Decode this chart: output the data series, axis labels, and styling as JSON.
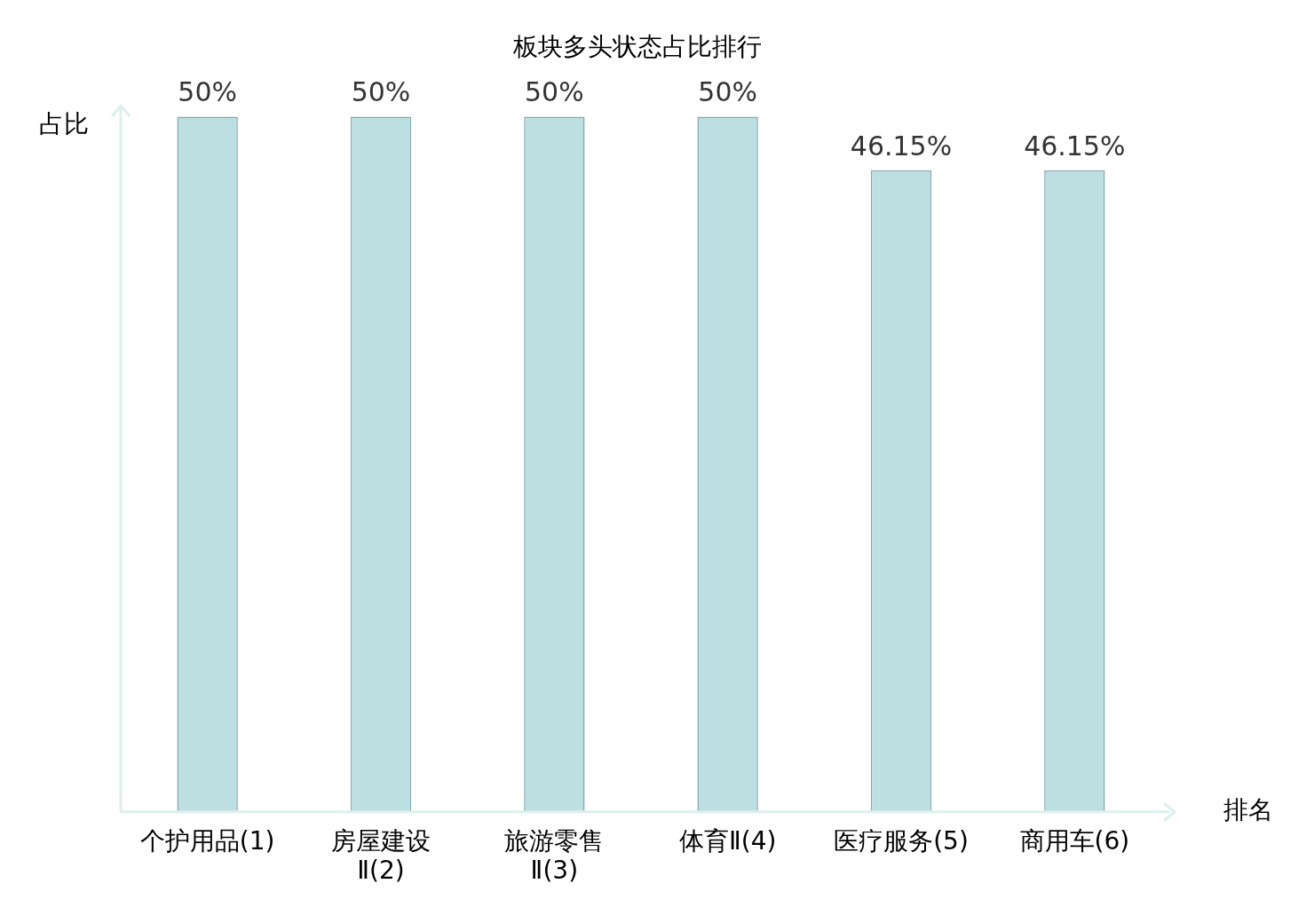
{
  "chart_data": {
    "type": "bar",
    "title": "板块多头状态占比排行",
    "xlabel": "排名",
    "ylabel": "占比",
    "categories": [
      "个护用品(1)",
      "房屋建设Ⅱ(2)",
      "旅游零售Ⅱ(3)",
      "体育Ⅱ(4)",
      "医疗服务(5)",
      "商用车(6)"
    ],
    "values": [
      50,
      50,
      50,
      50,
      46.15,
      46.15
    ],
    "value_labels": [
      "50%",
      "50%",
      "50%",
      "50%",
      "46.15%",
      "46.15%"
    ],
    "color": "#bce0e2",
    "ylim": [
      0,
      50
    ],
    "grid": false,
    "legend": false
  }
}
